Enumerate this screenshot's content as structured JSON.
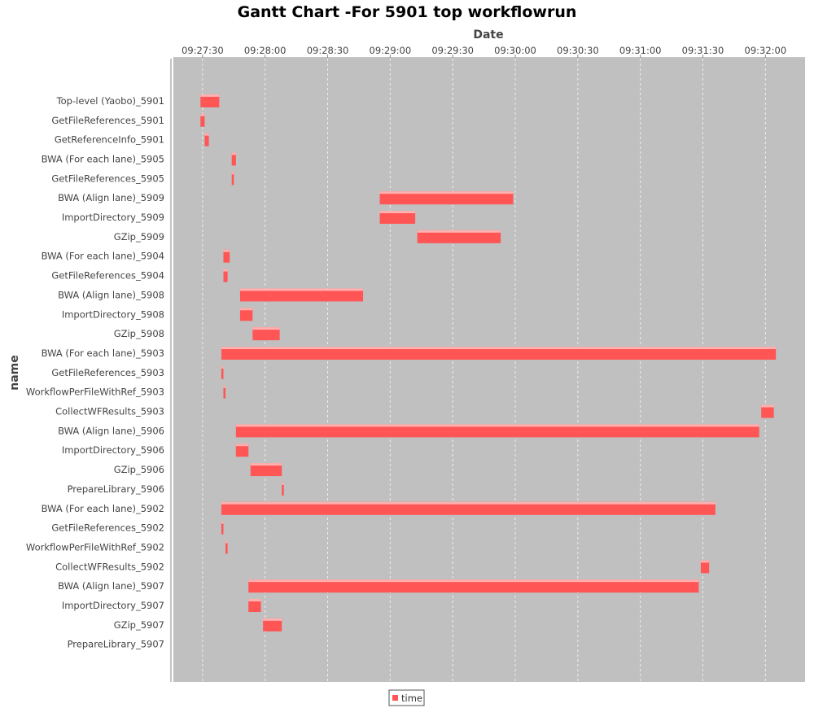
{
  "chart_data": {
    "type": "gantt",
    "title": "Gantt Chart -For 5901 top workflowrun",
    "xlabel": "Date",
    "ylabel": "name",
    "x_ticks": [
      "09:27:30",
      "09:28:00",
      "09:28:30",
      "09:29:00",
      "09:29:30",
      "09:30:00",
      "09:30:30",
      "09:31:00",
      "09:31:30",
      "09:32:00"
    ],
    "x_range": [
      "09:27:16",
      "09:32:19"
    ],
    "grid": true,
    "legend_position": "bottom",
    "series": [
      {
        "name": "time",
        "color": "#ff5555"
      }
    ],
    "tasks": [
      {
        "name": "Top-level (Yaobo)_5901",
        "start": "09:27:29",
        "end": "09:27:38"
      },
      {
        "name": "GetFileReferences_5901",
        "start": "09:27:29",
        "end": "09:27:31"
      },
      {
        "name": "GetReferenceInfo_5901",
        "start": "09:27:31",
        "end": "09:27:33"
      },
      {
        "name": "BWA (For each lane)_5905",
        "start": "09:27:44",
        "end": "09:27:46"
      },
      {
        "name": "GetFileReferences_5905",
        "start": "09:27:44",
        "end": "09:27:45"
      },
      {
        "name": "BWA (Align lane)_5909",
        "start": "09:28:55",
        "end": "09:29:59"
      },
      {
        "name": "ImportDirectory_5909",
        "start": "09:28:55",
        "end": "09:29:12"
      },
      {
        "name": "GZip_5909",
        "start": "09:29:13",
        "end": "09:29:53"
      },
      {
        "name": "BWA (For each lane)_5904",
        "start": "09:27:40",
        "end": "09:27:43"
      },
      {
        "name": "GetFileReferences_5904",
        "start": "09:27:40",
        "end": "09:27:42"
      },
      {
        "name": "BWA (Align lane)_5908",
        "start": "09:27:48",
        "end": "09:28:47"
      },
      {
        "name": "ImportDirectory_5908",
        "start": "09:27:48",
        "end": "09:27:54"
      },
      {
        "name": "GZip_5908",
        "start": "09:27:54",
        "end": "09:28:07"
      },
      {
        "name": "BWA (For each lane)_5903",
        "start": "09:27:39",
        "end": "09:32:05"
      },
      {
        "name": "GetFileReferences_5903",
        "start": "09:27:39",
        "end": "09:27:40"
      },
      {
        "name": "WorkflowPerFileWithRef_5903",
        "start": "09:27:40",
        "end": "09:27:41"
      },
      {
        "name": "CollectWFResults_5903",
        "start": "09:31:58",
        "end": "09:32:04"
      },
      {
        "name": "BWA (Align lane)_5906",
        "start": "09:27:46",
        "end": "09:31:57"
      },
      {
        "name": "ImportDirectory_5906",
        "start": "09:27:46",
        "end": "09:27:52"
      },
      {
        "name": "GZip_5906",
        "start": "09:27:53",
        "end": "09:28:08"
      },
      {
        "name": "PrepareLibrary_5906",
        "start": "09:28:08",
        "end": "09:28:09"
      },
      {
        "name": "BWA (For each lane)_5902",
        "start": "09:27:39",
        "end": "09:31:36"
      },
      {
        "name": "GetFileReferences_5902",
        "start": "09:27:39",
        "end": "09:27:40"
      },
      {
        "name": "WorkflowPerFileWithRef_5902",
        "start": "09:27:41",
        "end": "09:27:42"
      },
      {
        "name": "CollectWFResults_5902",
        "start": "09:31:29",
        "end": "09:31:33"
      },
      {
        "name": "BWA (Align lane)_5907",
        "start": "09:27:52",
        "end": "09:31:28"
      },
      {
        "name": "ImportDirectory_5907",
        "start": "09:27:52",
        "end": "09:27:58"
      },
      {
        "name": "GZip_5907",
        "start": "09:27:59",
        "end": "09:28:08"
      },
      {
        "name": "PrepareLibrary_5907",
        "start": null,
        "end": null
      }
    ]
  },
  "colors": {
    "plot_background": "#c0c0c0",
    "bar": "#ff5555",
    "bar_highlight": "#ffb0b0",
    "gridline": "#eeeeee"
  }
}
